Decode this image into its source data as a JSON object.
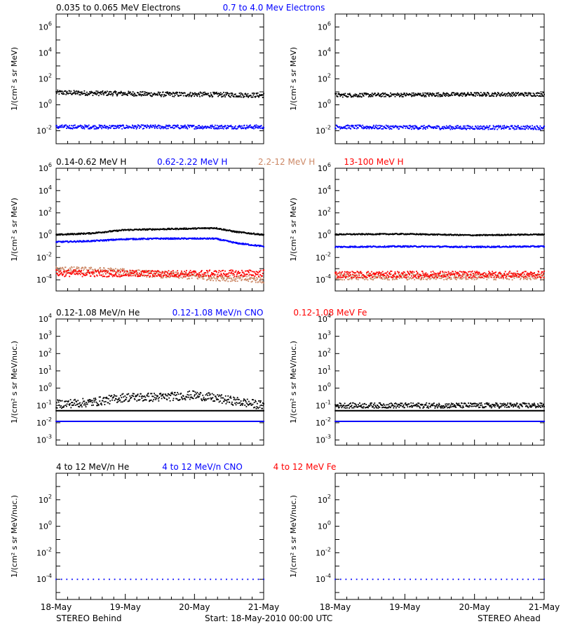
{
  "colors": {
    "black": "#000000",
    "blue": "#0000ff",
    "salmon": "#cc8866",
    "red": "#ff0000"
  },
  "footer": {
    "left_label": "STEREO Behind",
    "center_label": "Start: 18-May-2010 00:00 UTC",
    "right_label": "STEREO Ahead"
  },
  "x_axis": {
    "tick_labels": [
      "18-May",
      "19-May",
      "20-May",
      "21-May"
    ]
  },
  "chart_data": [
    {
      "type": "scatter",
      "row": 1,
      "spacecraft": "STEREO Behind",
      "title_items": [
        {
          "text": "0.035 to 0.065 MeV Electrons",
          "color": "#000000"
        },
        {
          "text": "0.7 to 4.0 Mev Electrons",
          "color": "#0000ff"
        }
      ],
      "ylabel": "1/(cm² s sr MeV)",
      "yscale": "log",
      "ylim": [
        0.001,
        10000000
      ],
      "y_ticks": [
        {
          "value": 1000000,
          "base": "10",
          "exp": "6"
        },
        {
          "value": 10000,
          "base": "10",
          "exp": "4"
        },
        {
          "value": 100,
          "base": "10",
          "exp": "2"
        },
        {
          "value": 1,
          "base": "10",
          "exp": "0"
        },
        {
          "value": 0.01,
          "base": "10",
          "exp": "-2"
        }
      ],
      "xlim_days": [
        0,
        3
      ],
      "series": [
        {
          "color": "#000000",
          "points": [
            [
              0,
              9
            ],
            [
              0.5,
              8
            ],
            [
              1,
              7.5
            ],
            [
              1.5,
              6.5
            ],
            [
              2,
              6.5
            ],
            [
              2.5,
              6
            ],
            [
              3,
              5.5
            ]
          ],
          "scatter": 0.18
        },
        {
          "color": "#0000ff",
          "points": [
            [
              0,
              0.02
            ],
            [
              1.5,
              0.02
            ],
            [
              3,
              0.02
            ]
          ],
          "scatter": 0.15
        }
      ]
    },
    {
      "type": "scatter",
      "row": 1,
      "spacecraft": "STEREO Ahead",
      "title_items": [],
      "ylabel": "1/(cm² s sr MeV)",
      "yscale": "log",
      "ylim": [
        0.001,
        10000000
      ],
      "y_ticks": [
        {
          "value": 1000000,
          "base": "10",
          "exp": "6"
        },
        {
          "value": 10000,
          "base": "10",
          "exp": "4"
        },
        {
          "value": 100,
          "base": "10",
          "exp": "2"
        },
        {
          "value": 1,
          "base": "10",
          "exp": "0"
        },
        {
          "value": 0.01,
          "base": "10",
          "exp": "-2"
        }
      ],
      "xlim_days": [
        0,
        3
      ],
      "series": [
        {
          "color": "#000000",
          "points": [
            [
              0,
              5.5
            ],
            [
              1,
              6
            ],
            [
              2,
              6.5
            ],
            [
              3,
              6.5
            ]
          ],
          "scatter": 0.15
        },
        {
          "color": "#0000ff",
          "points": [
            [
              0,
              0.02
            ],
            [
              1.5,
              0.018
            ],
            [
              3,
              0.018
            ]
          ],
          "scatter": 0.15
        }
      ]
    },
    {
      "type": "scatter",
      "row": 2,
      "spacecraft": "STEREO Behind",
      "title_items": [
        {
          "text": "0.14-0.62 MeV H",
          "color": "#000000"
        },
        {
          "text": "0.62-2.22 MeV H",
          "color": "#0000ff"
        },
        {
          "text": "2.2-12 MeV H",
          "color": "#cc8866"
        },
        {
          "text": "13-100 MeV H",
          "color": "#ff0000"
        }
      ],
      "ylabel": "1/(cm² s sr MeV)",
      "yscale": "log",
      "ylim": [
        1e-05,
        1000000
      ],
      "y_ticks": [
        {
          "value": 1000000,
          "base": "10",
          "exp": "6"
        },
        {
          "value": 10000,
          "base": "10",
          "exp": "4"
        },
        {
          "value": 100,
          "base": "10",
          "exp": "2"
        },
        {
          "value": 1,
          "base": "10",
          "exp": "0"
        },
        {
          "value": 0.01,
          "base": "10",
          "exp": "-2"
        },
        {
          "value": 0.0001,
          "base": "10",
          "exp": "-4"
        }
      ],
      "xlim_days": [
        0,
        3
      ],
      "series": [
        {
          "color": "#000000",
          "points": [
            [
              0,
              1.1
            ],
            [
              0.5,
              1.5
            ],
            [
              1,
              3
            ],
            [
              1.5,
              3.5
            ],
            [
              2,
              4
            ],
            [
              2.3,
              4.5
            ],
            [
              2.6,
              2
            ],
            [
              3,
              1.1
            ]
          ],
          "scatter": 0.06
        },
        {
          "color": "#0000ff",
          "points": [
            [
              0,
              0.25
            ],
            [
              0.5,
              0.3
            ],
            [
              1,
              0.45
            ],
            [
              1.5,
              0.5
            ],
            [
              2,
              0.5
            ],
            [
              2.3,
              0.5
            ],
            [
              2.6,
              0.2
            ],
            [
              3,
              0.1
            ]
          ],
          "scatter": 0.06
        },
        {
          "color": "#cc8866",
          "points": [
            [
              0,
              0.0008
            ],
            [
              0.5,
              0.0007
            ],
            [
              0.8,
              0.0006
            ],
            [
              1.5,
              0.0003
            ],
            [
              3,
              0.0001
            ]
          ],
          "scatter": 0.3
        },
        {
          "color": "#ff0000",
          "points": [
            [
              0,
              0.0004
            ],
            [
              1.5,
              0.00035
            ],
            [
              3,
              0.0004
            ]
          ],
          "scatter": 0.3
        }
      ]
    },
    {
      "type": "scatter",
      "row": 2,
      "spacecraft": "STEREO Ahead",
      "title_items": [],
      "ylabel": "1/(cm² s sr MeV)",
      "yscale": "log",
      "ylim": [
        1e-05,
        1000000
      ],
      "y_ticks": [
        {
          "value": 1000000,
          "base": "10",
          "exp": "6"
        },
        {
          "value": 10000,
          "base": "10",
          "exp": "4"
        },
        {
          "value": 100,
          "base": "10",
          "exp": "2"
        },
        {
          "value": 1,
          "base": "10",
          "exp": "0"
        },
        {
          "value": 0.01,
          "base": "10",
          "exp": "-2"
        },
        {
          "value": 0.0001,
          "base": "10",
          "exp": "-4"
        }
      ],
      "xlim_days": [
        0,
        3
      ],
      "series": [
        {
          "color": "#000000",
          "points": [
            [
              0,
              1.2
            ],
            [
              1,
              1.3
            ],
            [
              2,
              1
            ],
            [
              3,
              1.2
            ]
          ],
          "scatter": 0.05
        },
        {
          "color": "#0000ff",
          "points": [
            [
              0,
              0.09
            ],
            [
              1,
              0.1
            ],
            [
              2,
              0.09
            ],
            [
              3,
              0.1
            ]
          ],
          "scatter": 0.06
        },
        {
          "color": "#cc8866",
          "points": [
            [
              0,
              0.0002
            ],
            [
              3,
              0.0002
            ]
          ],
          "scatter": 0.3
        },
        {
          "color": "#ff0000",
          "points": [
            [
              0,
              0.0003
            ],
            [
              3,
              0.0003
            ]
          ],
          "scatter": 0.3
        }
      ]
    },
    {
      "type": "scatter",
      "row": 3,
      "spacecraft": "STEREO Behind",
      "title_items": [
        {
          "text": "0.12-1.08 MeV/n He",
          "color": "#000000"
        },
        {
          "text": "0.12-1.08 MeV/n CNO",
          "color": "#0000ff"
        },
        {
          "text": "0.12-1.08 MeV Fe",
          "color": "#ff0000"
        }
      ],
      "ylabel": "1/(cm² s sr MeV/nuc.)",
      "yscale": "log",
      "ylim": [
        0.0005,
        10000
      ],
      "y_ticks": [
        {
          "value": 10000,
          "base": "10",
          "exp": "4"
        },
        {
          "value": 1000,
          "base": "10",
          "exp": "3"
        },
        {
          "value": 100,
          "base": "10",
          "exp": "2"
        },
        {
          "value": 10,
          "base": "10",
          "exp": "1"
        },
        {
          "value": 1,
          "base": "10",
          "exp": "0"
        },
        {
          "value": 0.1,
          "base": "10",
          "exp": "-1"
        },
        {
          "value": 0.01,
          "base": "10",
          "exp": "-2"
        },
        {
          "value": 0.001,
          "base": "10",
          "exp": "-3"
        }
      ],
      "xlim_days": [
        0,
        3
      ],
      "series": [
        {
          "color": "#000000",
          "points": [
            [
              0,
              0.12
            ],
            [
              0.5,
              0.15
            ],
            [
              1,
              0.3
            ],
            [
              1.5,
              0.3
            ],
            [
              2,
              0.4
            ],
            [
              2.5,
              0.2
            ],
            [
              3,
              0.1
            ]
          ],
          "scatter": 0.25
        },
        {
          "color": "#000000",
          "points": [
            [
              0,
              0.05
            ],
            [
              3,
              0.05
            ]
          ],
          "scatter": 0.0
        },
        {
          "color": "#ff0000",
          "points": [
            [
              0,
              0.012
            ],
            [
              3,
              0.012
            ]
          ],
          "scatter": 0.0
        },
        {
          "color": "#0000ff",
          "points": [
            [
              0,
              0.012
            ],
            [
              3,
              0.012
            ]
          ],
          "scatter": 0.0
        }
      ]
    },
    {
      "type": "scatter",
      "row": 3,
      "spacecraft": "STEREO Ahead",
      "title_items": [],
      "ylabel": "1/(cm² s sr MeV/nuc.)",
      "yscale": "log",
      "ylim": [
        0.0005,
        10000
      ],
      "y_ticks": [
        {
          "value": 10000,
          "base": "10",
          "exp": "4"
        },
        {
          "value": 1000,
          "base": "10",
          "exp": "3"
        },
        {
          "value": 100,
          "base": "10",
          "exp": "2"
        },
        {
          "value": 10,
          "base": "10",
          "exp": "1"
        },
        {
          "value": 1,
          "base": "10",
          "exp": "0"
        },
        {
          "value": 0.1,
          "base": "10",
          "exp": "-1"
        },
        {
          "value": 0.01,
          "base": "10",
          "exp": "-2"
        },
        {
          "value": 0.001,
          "base": "10",
          "exp": "-3"
        }
      ],
      "xlim_days": [
        0,
        3
      ],
      "series": [
        {
          "color": "#000000",
          "points": [
            [
              0,
              0.1
            ],
            [
              3,
              0.1
            ]
          ],
          "scatter": 0.15
        },
        {
          "color": "#000000",
          "points": [
            [
              0,
              0.05
            ],
            [
              3,
              0.05
            ]
          ],
          "scatter": 0.0
        },
        {
          "color": "#ff0000",
          "points": [
            [
              0,
              0.012
            ],
            [
              3,
              0.012
            ]
          ],
          "scatter": 0.0
        },
        {
          "color": "#0000ff",
          "points": [
            [
              0,
              0.012
            ],
            [
              3,
              0.012
            ]
          ],
          "scatter": 0.0
        }
      ]
    },
    {
      "type": "scatter",
      "row": 4,
      "spacecraft": "STEREO Behind",
      "title_items": [
        {
          "text": "4 to 12 MeV/n He",
          "color": "#000000"
        },
        {
          "text": "4 to 12 MeV/n CNO",
          "color": "#0000ff"
        },
        {
          "text": "4 to 12 MeV Fe",
          "color": "#ff0000"
        }
      ],
      "ylabel": "1/(cm² s sr MeV/nuc.)",
      "yscale": "log",
      "ylim": [
        3e-06,
        10000
      ],
      "y_ticks": [
        {
          "value": 100,
          "base": "10",
          "exp": "2"
        },
        {
          "value": 1,
          "base": "10",
          "exp": "0"
        },
        {
          "value": 0.01,
          "base": "10",
          "exp": "-2"
        },
        {
          "value": 0.0001,
          "base": "10",
          "exp": "-4"
        }
      ],
      "xlim_days": [
        0,
        3
      ],
      "series": [
        {
          "color": "#0000ff",
          "points": [
            [
              0,
              0.0001
            ],
            [
              3,
              0.0001
            ]
          ],
          "scatter": 0.0,
          "sparse": true
        }
      ]
    },
    {
      "type": "scatter",
      "row": 4,
      "spacecraft": "STEREO Ahead",
      "title_items": [],
      "ylabel": "1/(cm² s sr MeV/nuc.)",
      "yscale": "log",
      "ylim": [
        3e-06,
        10000
      ],
      "y_ticks": [
        {
          "value": 100,
          "base": "10",
          "exp": "2"
        },
        {
          "value": 1,
          "base": "10",
          "exp": "0"
        },
        {
          "value": 0.01,
          "base": "10",
          "exp": "-2"
        },
        {
          "value": 0.0001,
          "base": "10",
          "exp": "-4"
        }
      ],
      "xlim_days": [
        0,
        3
      ],
      "series": [
        {
          "color": "#0000ff",
          "points": [
            [
              0,
              0.0001
            ],
            [
              3,
              0.0001
            ]
          ],
          "scatter": 0.0,
          "sparse": true
        }
      ]
    }
  ]
}
